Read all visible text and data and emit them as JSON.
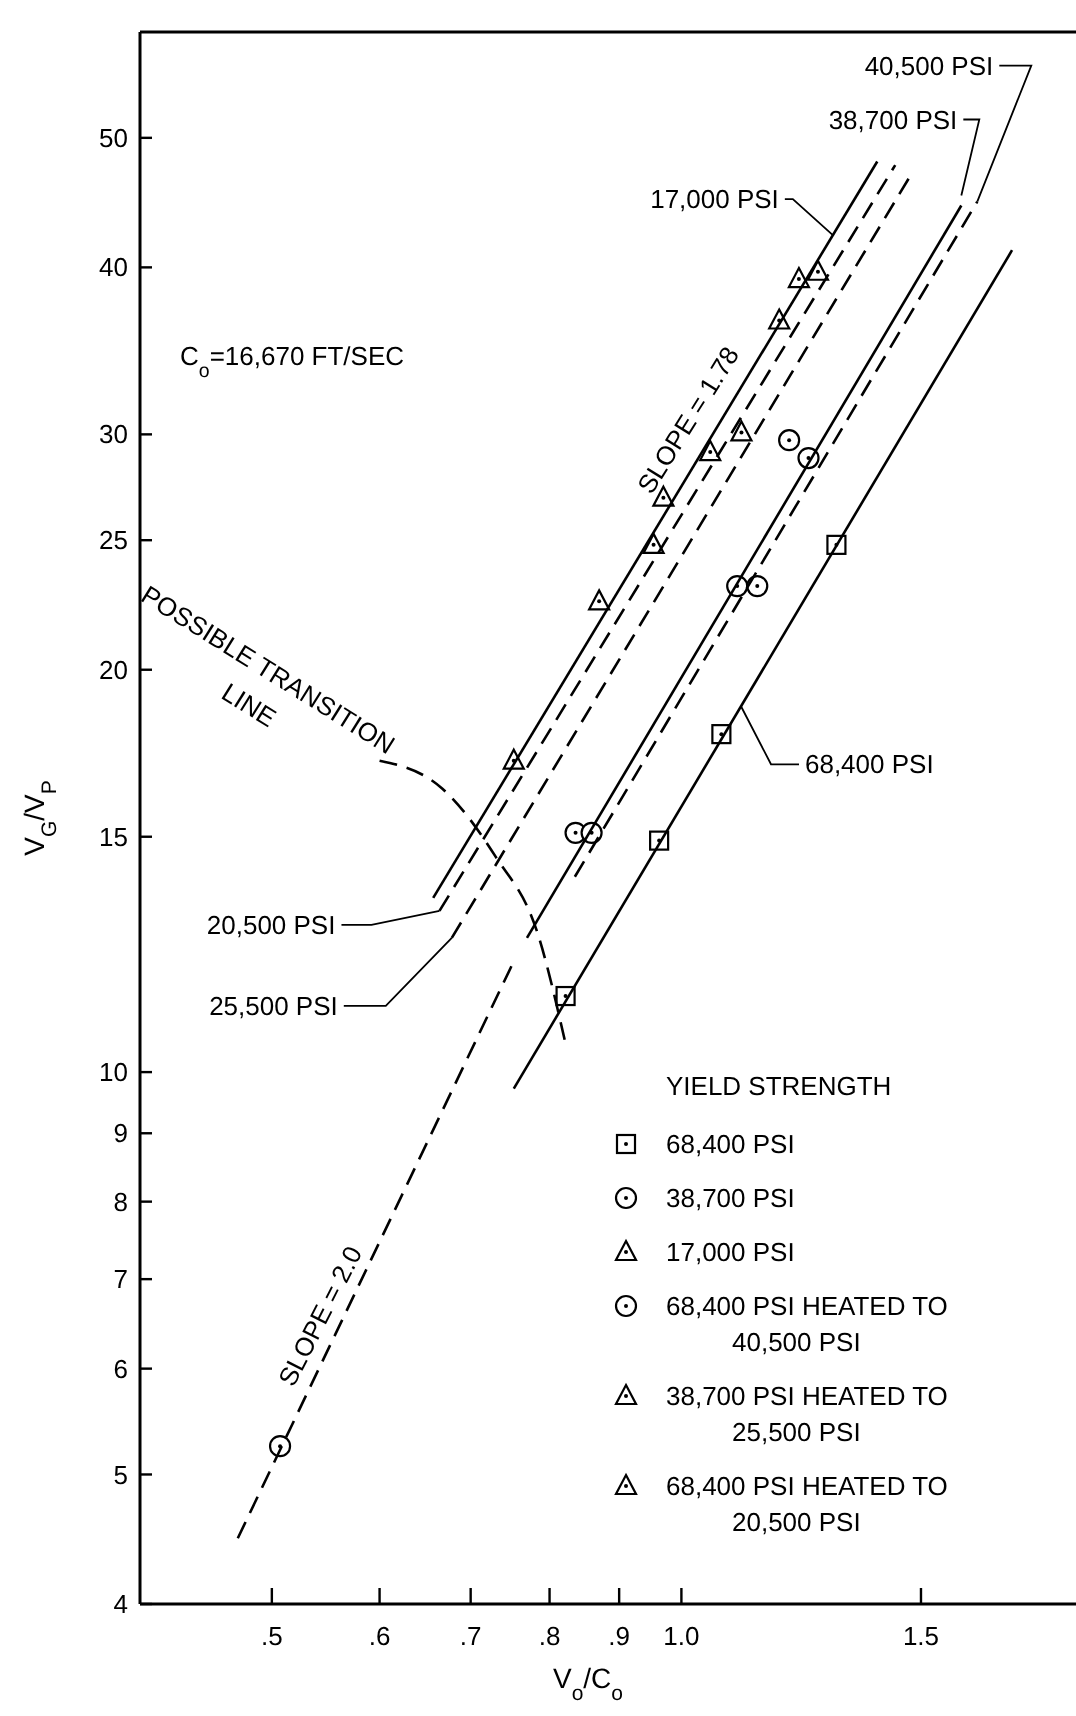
{
  "chart_data": {
    "type": "scatter",
    "log": "xy",
    "xlabel": "V$_{o}$/C$_{o}$",
    "ylabel": "V$_{G}$/V$_{P}$",
    "legend": "bottom right",
    "legend_title": "YIELD STRENGTH",
    "xlim": [
      0.4,
      1.95
    ],
    "ylim": [
      4,
      60
    ],
    "xticks": [
      {
        "value": 0.5,
        "label": ".5"
      },
      {
        "value": 0.6,
        "label": ".6"
      },
      {
        "value": 0.7,
        "label": ".7"
      },
      {
        "value": 0.8,
        "label": ".8"
      },
      {
        "value": 0.9,
        "label": ".9"
      },
      {
        "value": 1.0,
        "label": "1.0"
      },
      {
        "value": 1.5,
        "label": "1.5"
      }
    ],
    "yticks": [
      4,
      5,
      6,
      7,
      8,
      9,
      10,
      15,
      20,
      25,
      30,
      40,
      50
    ],
    "annotations": [
      "C$_{o}$=16,670 FT/SEC",
      "SLOPE = 1.78",
      "SLOPE = 2.0",
      "POSSIBLE TRANSITION LINE"
    ],
    "series": [
      {
        "name": "68,400 PSI",
        "marker": "square",
        "color": "#000000",
        "x": [
          0.822,
          0.963,
          1.07,
          1.3
        ],
        "values": [
          11.4,
          14.9,
          17.9,
          24.8
        ]
      },
      {
        "name": "38,700 PSI",
        "marker": "circle",
        "color": "#000000",
        "x": [
          0.507,
          0.836,
          0.859,
          1.099,
          1.137,
          1.24
        ],
        "values": [
          5.25,
          15.1,
          15.1,
          23.1,
          23.1,
          28.8
        ]
      },
      {
        "name": "17,000 PSI",
        "marker": "triangle",
        "color": "#000000",
        "x": [
          0.753,
          0.87,
          0.954,
          0.97,
          1.05,
          1.18,
          1.22
        ],
        "values": [
          17.1,
          22.5,
          24.8,
          26.9,
          29.1,
          36.5,
          39.2
        ]
      },
      {
        "name": "68,400 PSI HEATED TO 40,500 PSI",
        "marker": "circle",
        "color": "#000000",
        "x": [
          1.2
        ],
        "values": [
          29.7
        ]
      },
      {
        "name": "38,700 PSI HEATED TO 25,500 PSI",
        "marker": "triangle",
        "color": "#000000",
        "x": [
          1.26
        ],
        "values": [
          39.7
        ]
      },
      {
        "name": "68,400 PSI HEATED TO 20,500 PSI",
        "marker": "triangle",
        "color": "#000000",
        "x": [
          1.107
        ],
        "values": [
          30.1
        ]
      },
      {
        "name": "68,400 PSI",
        "type": "line",
        "line_style": "solid",
        "color": "#000000",
        "x": [
          0.753,
          1.75
        ],
        "values": [
          9.72,
          41.2
        ]
      },
      {
        "name": "38,700 PSI",
        "type": "line",
        "line_style": "solid",
        "color": "#000000",
        "x": [
          0.77,
          1.606
        ],
        "values": [
          12.6,
          44.5
        ]
      },
      {
        "name": "40,500 PSI",
        "type": "line",
        "line_style": "dashed",
        "color": "#000000",
        "x": [
          0.835,
          1.65
        ],
        "values": [
          14.0,
          44.8
        ]
      },
      {
        "name": "17,000 PSI",
        "type": "line",
        "line_style": "solid",
        "color": "#000000",
        "x": [
          0.657,
          1.393
        ],
        "values": [
          13.5,
          48.0
        ]
      },
      {
        "name": "20,500 PSI",
        "type": "line",
        "line_style": "dashed",
        "color": "#000000",
        "x": [
          0.664,
          1.436
        ],
        "values": [
          13.2,
          47.7
        ]
      },
      {
        "name": "25,500 PSI",
        "type": "line",
        "line_style": "dashed",
        "color": "#000000",
        "x": [
          0.678,
          1.48
        ],
        "values": [
          12.6,
          47.2
        ]
      },
      {
        "type": "line",
        "line_style": "dashed",
        "color": "#000000",
        "x": [
          0.472,
          0.75
        ],
        "values": [
          4.48,
          12.0
        ]
      },
      {
        "type": "line",
        "line_style": "dashed",
        "color": "#000000",
        "x": [
          0.6,
          0.667,
          0.73,
          0.784,
          0.822
        ],
        "values": [
          17.1,
          16.3,
          14.5,
          12.7,
          10.5
        ]
      }
    ]
  }
}
